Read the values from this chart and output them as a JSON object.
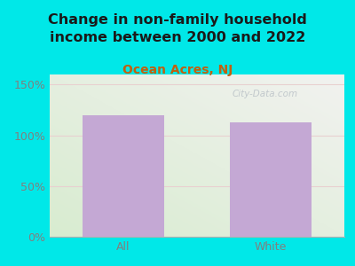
{
  "title": "Change in non-family household\nincome between 2000 and 2022",
  "subtitle": "Ocean Acres, NJ",
  "categories": [
    "All",
    "White"
  ],
  "values": [
    120,
    113
  ],
  "bar_color": "#c4a8d4",
  "background_outer": "#00e8e8",
  "title_color": "#1a1a1a",
  "subtitle_color": "#c06010",
  "tick_color": "#808080",
  "yticks": [
    0,
    50,
    100,
    150
  ],
  "ytick_labels": [
    "0%",
    "50%",
    "100%",
    "150%"
  ],
  "ylim": [
    0,
    160
  ],
  "title_fontsize": 11.5,
  "subtitle_fontsize": 10,
  "tick_fontsize": 9,
  "watermark": "City-Data.com",
  "grid_color": "#e8d0d0",
  "bg_green": "#d8ecd0",
  "bg_white": "#f2f2f0"
}
